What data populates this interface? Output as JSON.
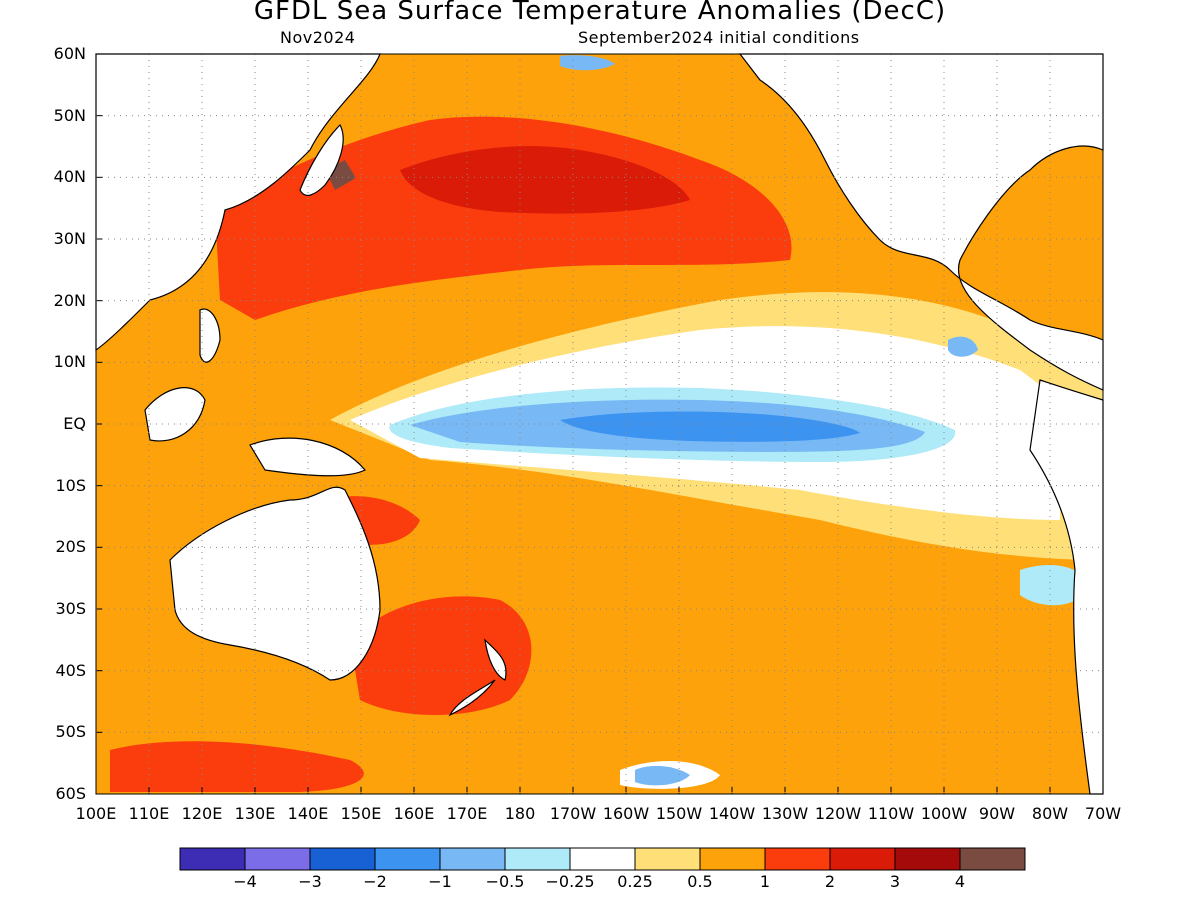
{
  "title": "GFDL Sea Surface Temperature Anomalies (DecC)",
  "subtitle_left": "Nov2024",
  "subtitle_right": "September2024 initial conditions",
  "lat_labels": [
    "60N",
    "50N",
    "40N",
    "30N",
    "20N",
    "10N",
    "EQ",
    "10S",
    "20S",
    "30S",
    "40S",
    "50S",
    "60S"
  ],
  "lon_labels": [
    "100E",
    "110E",
    "120E",
    "130E",
    "140E",
    "150E",
    "160E",
    "170E",
    "180",
    "170W",
    "160W",
    "150W",
    "140W",
    "130W",
    "120W",
    "110W",
    "100W",
    "90W",
    "80W",
    "70W"
  ],
  "colorbar": {
    "colors": [
      "#3c2db4",
      "#7b6de8",
      "#1861d4",
      "#3d94f0",
      "#78b9f5",
      "#aeeaf7",
      "#ffffff",
      "#fedf78",
      "#fda20a",
      "#fb3d0d",
      "#d91b08",
      "#a40a09",
      "#7a4b40"
    ],
    "labels": [
      "-4",
      "-3",
      "-2",
      "-1",
      "-0.5",
      "-0.25",
      "0.25",
      "0.5",
      "1",
      "2",
      "3",
      "4"
    ]
  }
}
